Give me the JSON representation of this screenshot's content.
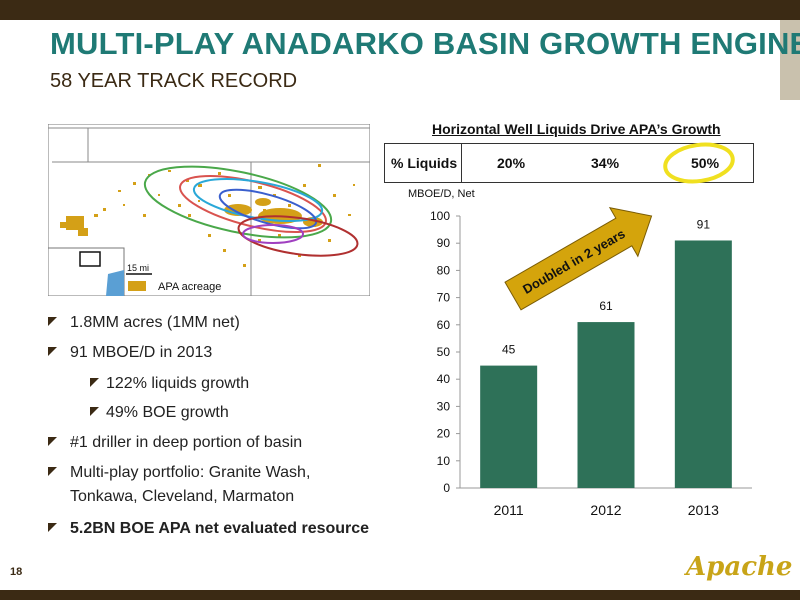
{
  "slide": {
    "title": "MULTI-PLAY ANADARKO BASIN GROWTH ENGINE",
    "subtitle": "58 YEAR TRACK RECORD",
    "page_number": "18",
    "logo_text": "Apache"
  },
  "map": {
    "scale_label": "15 mi",
    "legend_label": "APA acreage",
    "acreage_color": "#d4a017"
  },
  "bullets": [
    {
      "text": "1.8MM acres (1MM net)",
      "level": 1
    },
    {
      "text": "91 MBOE/D in 2013",
      "level": 1
    },
    {
      "text": "122% liquids growth",
      "level": 2
    },
    {
      "text": "49% BOE growth",
      "level": 2
    },
    {
      "text": "#1 driller in deep portion of basin",
      "level": 1
    },
    {
      "text": "Multi-play portfolio: Granite Wash,",
      "level": 1
    },
    {
      "text": "Tonkawa, Cleveland, Marmaton",
      "level": 1
    },
    {
      "text": "5.2BN BOE APA net evaluated resource",
      "level": 1,
      "bold": true
    }
  ],
  "liquids_table": {
    "heading": "Horizontal Well Liquids Drive APA’s Growth",
    "row_label": "% Liquids",
    "values": [
      "20%",
      "34%",
      "50%"
    ]
  },
  "annotation": "Doubled in 2 years",
  "chart_data": {
    "type": "bar",
    "categories": [
      "2011",
      "2012",
      "2013"
    ],
    "values": [
      45,
      61,
      91
    ],
    "ylabel": "MBOE/D, Net",
    "ylim": [
      0,
      100
    ],
    "yticks": [
      0,
      10,
      20,
      30,
      40,
      50,
      60,
      70,
      80,
      90,
      100
    ],
    "bar_color": "#2e7158",
    "arrow_color": "#d4a40c"
  }
}
